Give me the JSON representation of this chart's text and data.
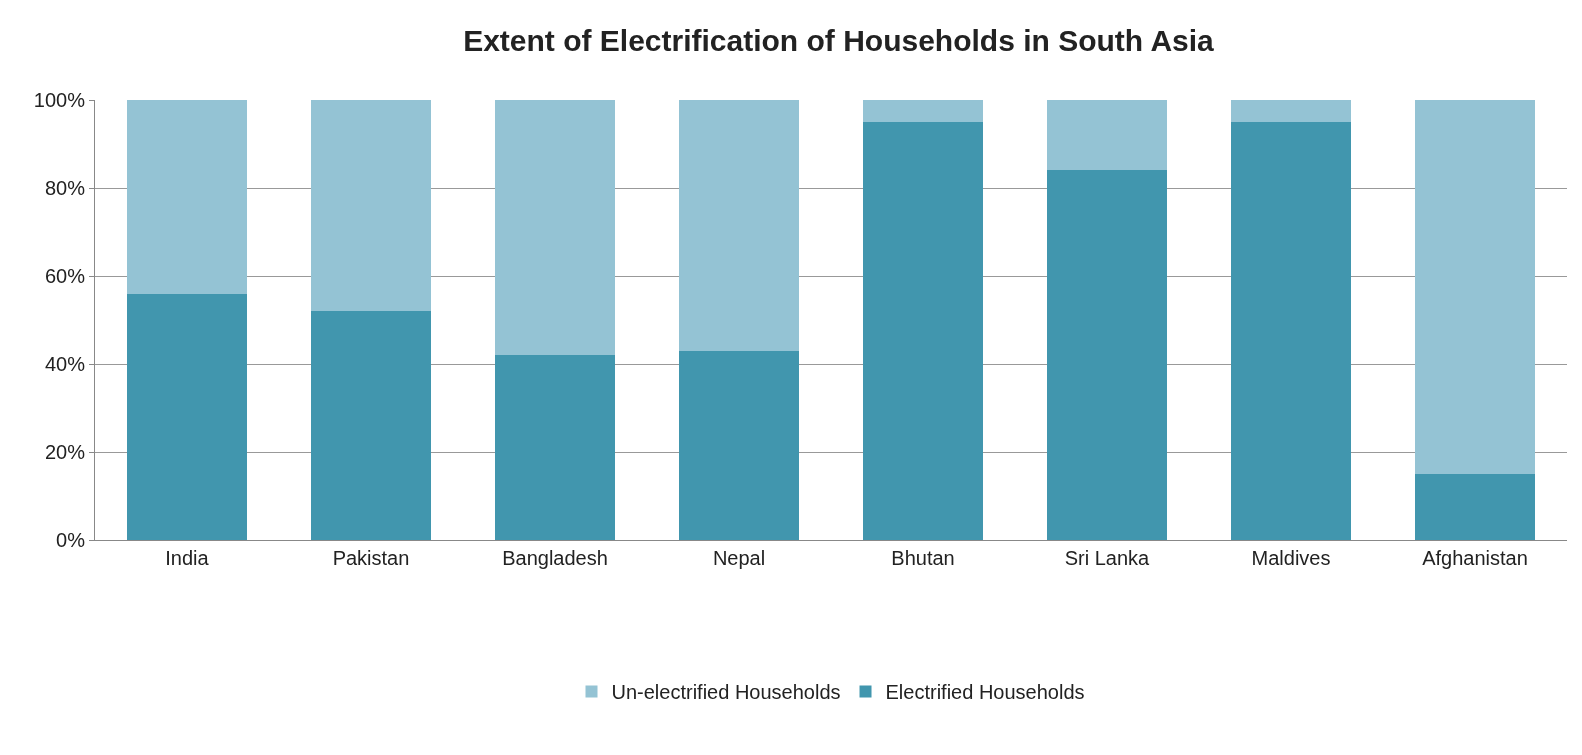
{
  "chart_data": {
    "type": "bar",
    "title": "Extent of Electrification of Households in South Asia",
    "categories": [
      "India",
      "Pakistan",
      "Bangladesh",
      "Nepal",
      "Bhutan",
      "Sri Lanka",
      "Maldives",
      "Afghanistan"
    ],
    "stacked": true,
    "series": [
      {
        "name": "Electrified Households",
        "color": "#4196ae",
        "values": [
          56,
          52,
          42,
          43,
          95,
          84,
          95,
          15
        ]
      },
      {
        "name": "Un-electrified Households",
        "color": "#94c3d4",
        "values": [
          44,
          48,
          58,
          57,
          5,
          16,
          5,
          85
        ]
      }
    ],
    "ylim": [
      0,
      100
    ],
    "yticks": [
      {
        "value": 0,
        "label": "0%"
      },
      {
        "value": 20,
        "label": "20%"
      },
      {
        "value": 40,
        "label": "40%"
      },
      {
        "value": 60,
        "label": "60%"
      },
      {
        "value": 80,
        "label": "80%"
      },
      {
        "value": 100,
        "label": "100%"
      }
    ],
    "grid": "y",
    "legend": "bottom"
  }
}
